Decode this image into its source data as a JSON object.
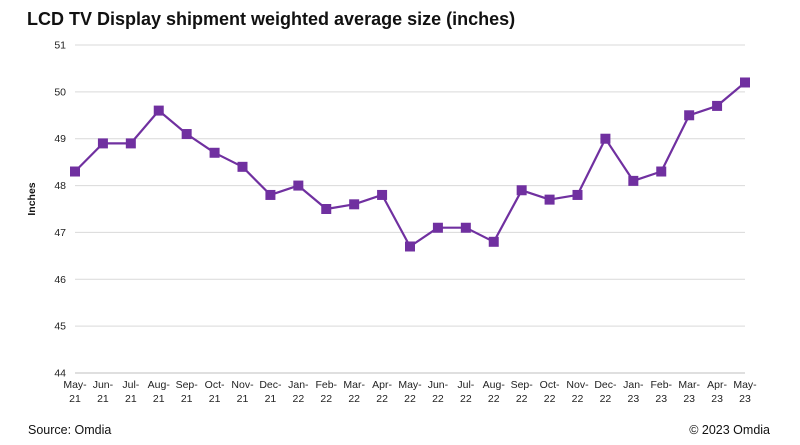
{
  "chart_data": {
    "type": "line",
    "title": "LCD TV Display shipment weighted average size (inches)",
    "ylabel": "Inches",
    "xlabel": "",
    "ylim": [
      44,
      51
    ],
    "yticks": [
      44,
      45,
      46,
      47,
      48,
      49,
      50,
      51
    ],
    "grid": "horizontal",
    "categories": [
      [
        "May-",
        "21"
      ],
      [
        "Jun-",
        "21"
      ],
      [
        "Jul-",
        "21"
      ],
      [
        "Aug-",
        "21"
      ],
      [
        "Sep-",
        "21"
      ],
      [
        "Oct-",
        "21"
      ],
      [
        "Nov-",
        "21"
      ],
      [
        "Dec-",
        "21"
      ],
      [
        "Jan-",
        "22"
      ],
      [
        "Feb-",
        "22"
      ],
      [
        "Mar-",
        "22"
      ],
      [
        "Apr-",
        "22"
      ],
      [
        "May-",
        "22"
      ],
      [
        "Jun-",
        "22"
      ],
      [
        "Jul-",
        "22"
      ],
      [
        "Aug-",
        "22"
      ],
      [
        "Sep-",
        "22"
      ],
      [
        "Oct-",
        "22"
      ],
      [
        "Nov-",
        "22"
      ],
      [
        "Dec-",
        "22"
      ],
      [
        "Jan-",
        "23"
      ],
      [
        "Feb-",
        "23"
      ],
      [
        "Mar-",
        "23"
      ],
      [
        "Apr-",
        "23"
      ],
      [
        "May-",
        "23"
      ]
    ],
    "values": [
      48.3,
      48.9,
      48.9,
      49.6,
      49.1,
      48.7,
      48.4,
      47.8,
      48.0,
      47.5,
      47.6,
      47.8,
      46.7,
      47.1,
      47.1,
      46.8,
      47.9,
      47.7,
      47.8,
      49.0,
      48.1,
      48.3,
      49.5,
      49.7,
      50.2
    ],
    "series_color": "#7030a0",
    "grid_color": "#d9d9d9",
    "marker": "square"
  },
  "footer": {
    "source": "Source: Omdia",
    "copyright": "© 2023 Omdia"
  }
}
